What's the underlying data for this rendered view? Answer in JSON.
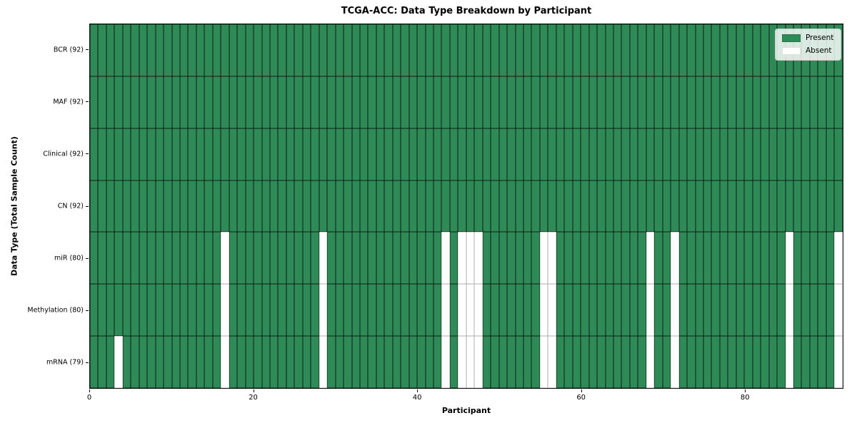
{
  "title": "TCGA-ACC: Data Type Breakdown by Participant",
  "colors": {
    "present": "#2e8b57",
    "absent": "#ffffff"
  },
  "legend": {
    "items": [
      {
        "label": "Present",
        "color": "#2e8b57"
      },
      {
        "label": "Absent",
        "color": "#ffffff"
      }
    ]
  },
  "chart_data": {
    "type": "heatmap",
    "title": "TCGA-ACC: Data Type Breakdown by Participant",
    "xlabel": "Participant",
    "ylabel": "Data Type (Total Sample Count)",
    "n_participants": 92,
    "x_ticks": [
      0,
      20,
      40,
      60,
      80
    ],
    "legend": [
      "Present",
      "Absent"
    ],
    "legend_position": "upper right",
    "rows": [
      {
        "key": "bcr",
        "label": "BCR (92)",
        "total_present": 92,
        "absent_participants": []
      },
      {
        "key": "maf",
        "label": "MAF (92)",
        "total_present": 92,
        "absent_participants": []
      },
      {
        "key": "clinical",
        "label": "Clinical (92)",
        "total_present": 92,
        "absent_participants": []
      },
      {
        "key": "cn",
        "label": "CN (92)",
        "total_present": 92,
        "absent_participants": []
      },
      {
        "key": "mir",
        "label": "miR (80)",
        "total_present": 80,
        "absent_participants": [
          16,
          28,
          43,
          45,
          46,
          47,
          55,
          56,
          68,
          71,
          85,
          91
        ]
      },
      {
        "key": "methylation",
        "label": "Methylation (80)",
        "total_present": 80,
        "absent_participants": [
          16,
          28,
          43,
          45,
          46,
          47,
          55,
          56,
          68,
          71,
          85,
          91
        ]
      },
      {
        "key": "mrna",
        "label": "mRNA (79)",
        "total_present": 79,
        "absent_participants": [
          3,
          16,
          28,
          43,
          45,
          46,
          47,
          55,
          56,
          68,
          71,
          85,
          91
        ]
      }
    ]
  }
}
